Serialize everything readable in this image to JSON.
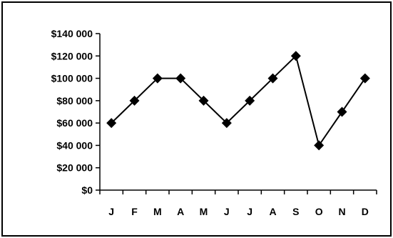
{
  "chart_data": {
    "type": "line",
    "title": "",
    "xlabel": "",
    "ylabel": "",
    "categories": [
      "J",
      "F",
      "M",
      "A",
      "M",
      "J",
      "J",
      "A",
      "S",
      "O",
      "N",
      "D"
    ],
    "series": [
      {
        "values": [
          60000,
          80000,
          100000,
          100000,
          80000,
          60000,
          80000,
          100000,
          120000,
          40000,
          70000,
          100000
        ]
      }
    ],
    "ylim": [
      0,
      140000
    ],
    "y_ticks": [
      0,
      20000,
      40000,
      60000,
      80000,
      100000,
      120000,
      140000
    ],
    "y_tick_labels": [
      "$0",
      "$20 000",
      "$40 000",
      "$60 000",
      "$80 000",
      "$100 000",
      "$120 000",
      "$140 000"
    ],
    "grid": false,
    "legend": "none",
    "marker": "diamond",
    "line_color": "#000000",
    "marker_color": "#000000"
  }
}
